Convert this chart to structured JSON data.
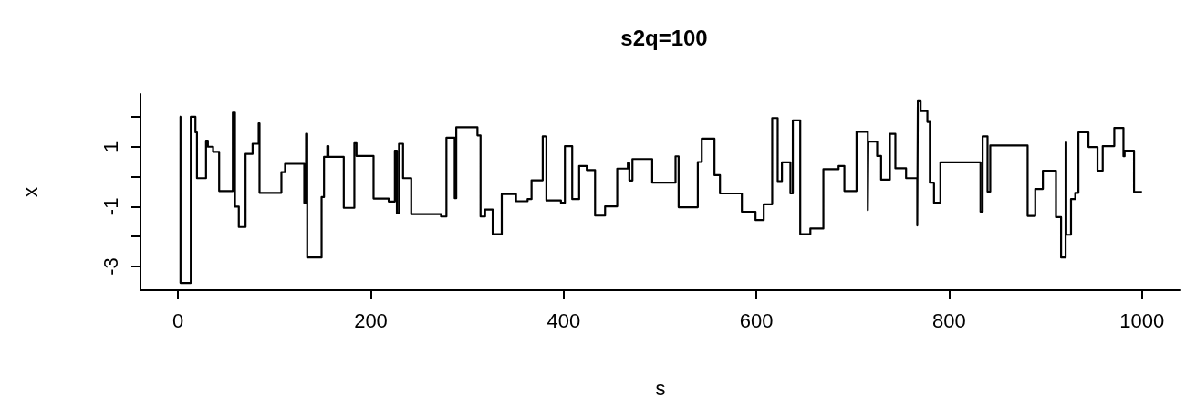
{
  "chart_data": {
    "type": "step",
    "title": "s2q=100",
    "xlabel": "s",
    "ylabel": "x",
    "xlim": [
      -39,
      1040
    ],
    "ylim": [
      -3.79,
      2.76
    ],
    "xticks": [
      0,
      200,
      400,
      600,
      800,
      1000
    ],
    "yticks": [
      -3,
      {
        "value": -2,
        "label": null
      },
      -1,
      {
        "value": 0,
        "label": null
      },
      1,
      {
        "value": 2,
        "label": null
      }
    ],
    "grid": false,
    "marker": "none",
    "line_style": "solid",
    "series": [
      {
        "color": "#000000",
        "x": [
          1.6,
          2.5,
          13.2,
          18,
          19.6,
          29,
          30.9,
          36.3,
          42.6,
          56.8,
          59,
          63,
          70,
          77.3,
          83.6,
          84.5,
          107.2,
          111,
          130.9,
          132.8,
          134,
          148.9,
          151.4,
          154.8,
          156,
          171.9,
          182.9,
          185.1,
          202.8,
          218.5,
          224.9,
          227,
          229.2,
          233.4,
          241.9,
          272.8,
          278.4,
          287,
          288.6,
          290.2,
          310.6,
          313.8,
          318.5,
          326.4,
          335.8,
          350.6,
          362.6,
          366.7,
          378.3,
          382.1,
          397.2,
          401.3,
          408.9,
          416.1,
          424,
          432.6,
          443,
          455.6,
          466.6,
          468.2,
          471.4,
          491.9,
          516.1,
          519.3,
          539.2,
          543.3,
          556.5,
          562.2,
          584.9,
          599.1,
          607.6,
          616.4,
          622.1,
          626.5,
          635.3,
          637.8,
          645.5,
          656,
          669.5,
          685.3,
          691.3,
          703.9,
          715.6,
          716.2,
          725.3,
          729.4,
          738.5,
          744.2,
          755.3,
          766.9,
          767.5,
          770.4,
          777.4,
          780,
          784.3,
          790.9,
          832.5,
          834.7,
          839.8,
          842.6,
          881.4,
          889.3,
          897.2,
          910.8,
          916.1,
          920.8,
          921.5,
          926.4,
          930.8,
          934.1,
          944.5,
          953.9,
          959.3,
          971.3,
          980.8,
          982,
          991.8,
          1000
        ],
        "values": [
          2.0,
          -3.55,
          2.0,
          1.48,
          -0.05,
          1.2,
          1.0,
          0.83,
          -0.48,
          2.14,
          -1.0,
          -1.68,
          0.76,
          1.1,
          1.78,
          -0.54,
          0.15,
          0.43,
          -0.87,
          1.43,
          -2.7,
          -0.68,
          0.66,
          1.02,
          0.66,
          -1.04,
          1.12,
          0.69,
          -0.73,
          -0.83,
          0.87,
          -1.22,
          1.1,
          -0.05,
          -1.25,
          -1.33,
          1.3,
          -0.72,
          1.65,
          1.65,
          1.38,
          -1.33,
          -1.1,
          -1.92,
          -0.58,
          -0.82,
          -0.75,
          -0.12,
          1.35,
          -0.79,
          -0.87,
          1.02,
          -0.75,
          0.36,
          0.22,
          -1.3,
          -0.99,
          0.27,
          0.45,
          -0.13,
          0.59,
          -0.2,
          0.68,
          -1.02,
          0.49,
          1.27,
          0.05,
          -0.56,
          -1.17,
          -1.45,
          -0.92,
          1.96,
          -0.15,
          0.48,
          -0.56,
          1.88,
          -1.92,
          -1.73,
          0.25,
          0.36,
          -0.48,
          1.5,
          -1.12,
          1.17,
          0.69,
          -0.1,
          1.43,
          0.28,
          -0.05,
          -1.63,
          2.52,
          2.19,
          1.83,
          -0.2,
          -0.87,
          0.48,
          -1.17,
          1.35,
          -0.5,
          1.04,
          -1.31,
          -0.41,
          0.2,
          -1.35,
          -2.7,
          1.14,
          -1.94,
          -0.75,
          -0.54,
          1.48,
          0.99,
          0.2,
          1.02,
          1.63,
          0.68,
          0.87,
          -0.51,
          -0.51
        ]
      }
    ]
  }
}
